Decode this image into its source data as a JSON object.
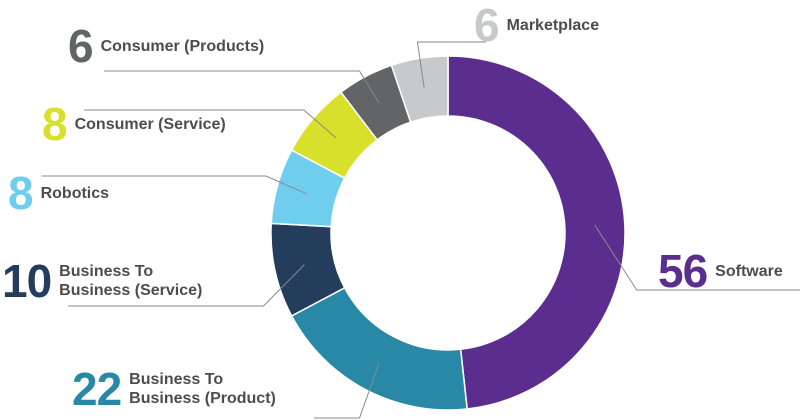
{
  "chart_data": {
    "type": "pie",
    "title": "",
    "values": [
      56,
      22,
      10,
      8,
      8,
      6,
      6
    ],
    "series": [
      {
        "name": "Software",
        "value": 56,
        "display": "56",
        "line1": "Software",
        "line2": "",
        "color": "#5b2d8e"
      },
      {
        "name": "Business To Business (Product)",
        "value": 22,
        "display": "22",
        "line1": "Business To",
        "line2": "Business (Product)",
        "color": "#2888a6"
      },
      {
        "name": "Business To Business (Service)",
        "value": 10,
        "display": "10",
        "line1": "Business To",
        "line2": "Business (Service)",
        "color": "#243d5c"
      },
      {
        "name": "Robotics",
        "value": 8,
        "display": "8",
        "line1": "Robotics",
        "line2": "",
        "color": "#6fcdee"
      },
      {
        "name": "Consumer (Service)",
        "value": 8,
        "display": "8",
        "line1": "Consumer (Service)",
        "line2": "",
        "color": "#d9e02b"
      },
      {
        "name": "Consumer (Products)",
        "value": 6,
        "display": "6",
        "line1": "Consumer (Products)",
        "line2": "",
        "color": "#636466"
      },
      {
        "name": "Marketplace",
        "value": 6,
        "display": "6",
        "line1": "Marketplace",
        "line2": "",
        "color": "#c8c9cb"
      }
    ],
    "donut": true,
    "legend": "callouts around the ring",
    "leader_line_color": "#8a8a8a"
  }
}
